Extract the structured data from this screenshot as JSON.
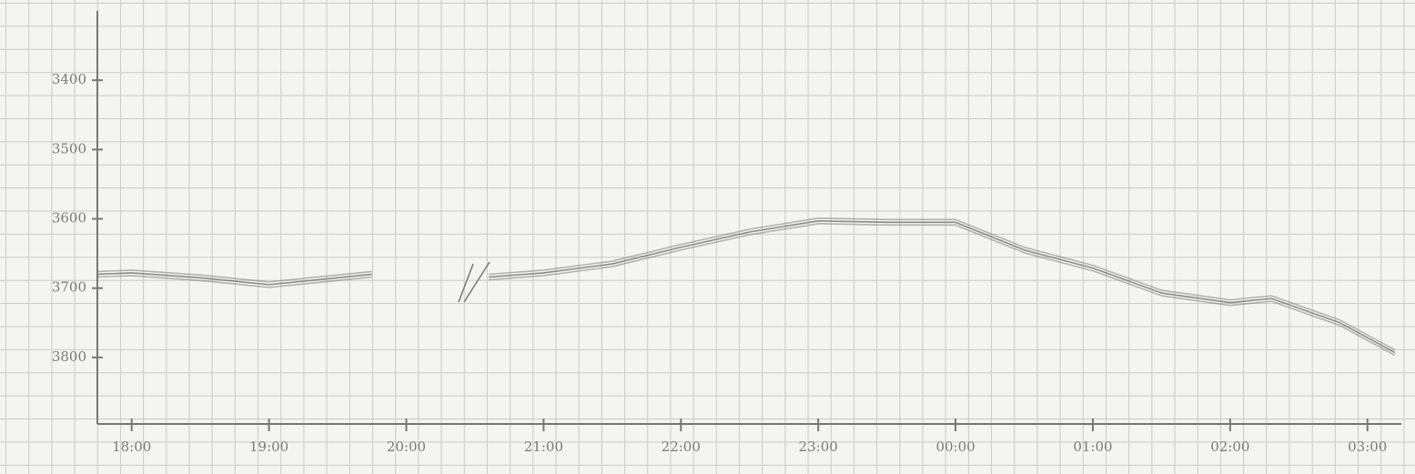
{
  "chart_data": {
    "type": "line",
    "x": [
      17.75,
      18.0,
      18.5,
      19.0,
      19.5,
      19.75,
      20.2,
      20.6,
      21.0,
      21.5,
      22.0,
      22.5,
      23.0,
      23.5,
      24.0,
      24.5,
      25.0,
      25.5,
      26.0,
      26.3,
      26.8,
      27.2
    ],
    "series": [
      {
        "color": "#6f6f6f",
        "values": [
          3680,
          3678,
          3685,
          3695,
          3685,
          3680,
          null,
          3684,
          3678,
          3665,
          3641,
          3619,
          3603,
          3605,
          3605,
          3645,
          3671,
          3707,
          3721,
          3715,
          3750,
          3793
        ]
      }
    ],
    "xlim": [
      17.75,
      27.3
    ],
    "xticks": [
      {
        "value": 18,
        "label": "18:00"
      },
      {
        "value": 19,
        "label": "19:00"
      },
      {
        "value": 20,
        "label": "20:00"
      },
      {
        "value": 21,
        "label": "21:00"
      },
      {
        "value": 22,
        "label": "22:00"
      },
      {
        "value": 23,
        "label": "23:00"
      },
      {
        "value": 24,
        "label": "00:00"
      },
      {
        "value": 25,
        "label": "01:00"
      },
      {
        "value": 26,
        "label": "02:00"
      },
      {
        "value": 27,
        "label": "03:00"
      }
    ],
    "ylim": [
      3300,
      3896
    ],
    "yticks": [
      3400,
      3500,
      3600,
      3700,
      3800
    ],
    "inverted_y": true
  }
}
